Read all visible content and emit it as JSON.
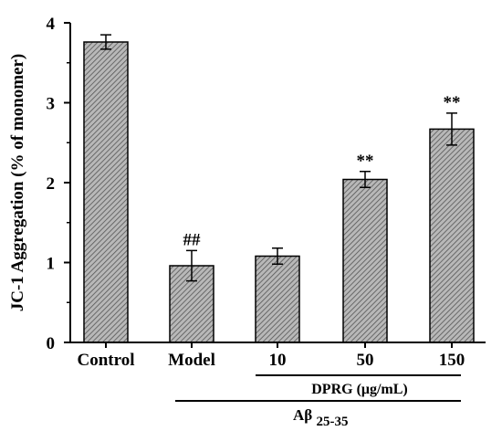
{
  "chart_data": {
    "type": "bar",
    "ylabel": "JC-1 Aggregation (% of monomer)",
    "ylim": [
      0,
      4
    ],
    "yticks": [
      "0",
      "1",
      "2",
      "3",
      "4"
    ],
    "categories": [
      "Control",
      "Model",
      "10",
      "50",
      "150"
    ],
    "values": [
      3.76,
      0.96,
      1.08,
      2.04,
      2.67
    ],
    "errors": [
      0.09,
      0.19,
      0.1,
      0.1,
      0.2
    ],
    "significance": [
      "",
      "##",
      "",
      "**",
      "**"
    ],
    "bar_fill": "hatched diagonal",
    "bar_color": "#8a8a8a",
    "axis_color": "#000000",
    "group_labels": {
      "dprg": "DPRG (μg/mL)",
      "abeta_main": "Aβ",
      "abeta_sub": "25-35"
    }
  }
}
